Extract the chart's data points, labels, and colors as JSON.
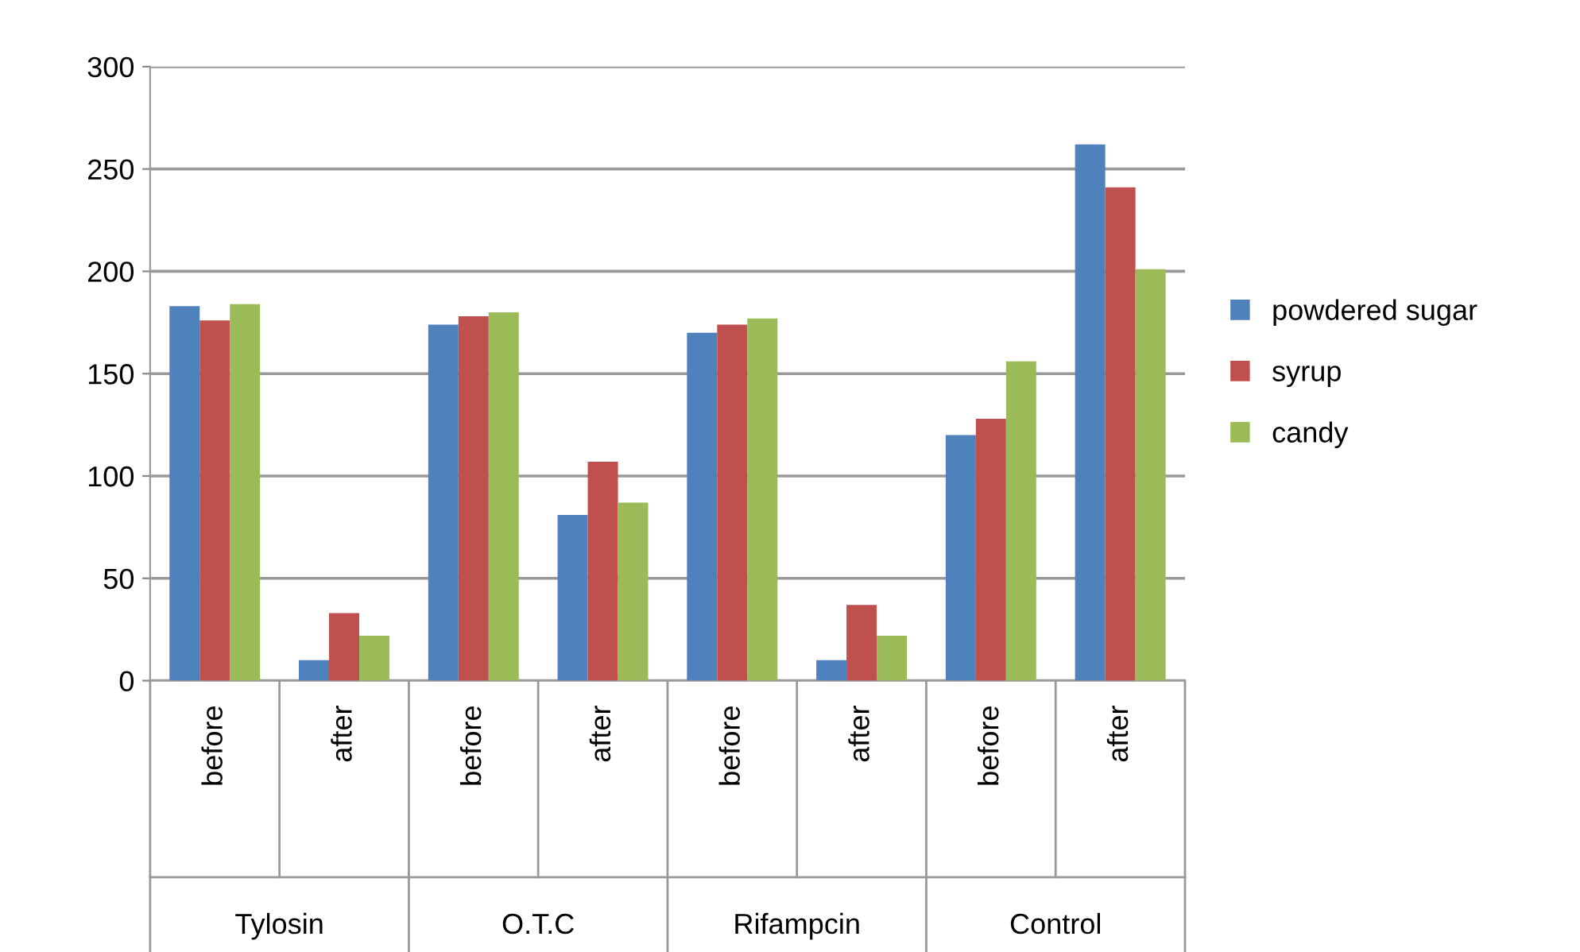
{
  "chart_data": {
    "type": "bar",
    "categories": [
      "before",
      "after",
      "before",
      "after",
      "before",
      "after",
      "before",
      "after"
    ],
    "annotations": [
      "Tylosin",
      "O.T.C",
      "Rifampcin",
      "Control"
    ],
    "series": [
      {
        "name": "powdered sugar",
        "color": "#4f81bd",
        "values": [
          183,
          10,
          174,
          81,
          170,
          10,
          120,
          262
        ]
      },
      {
        "name": "syrup",
        "color": "#c0504d",
        "values": [
          176,
          33,
          178,
          107,
          174,
          37,
          128,
          241
        ]
      },
      {
        "name": "candy",
        "color": "#9bbb59",
        "values": [
          184,
          22,
          180,
          87,
          177,
          22,
          156,
          201
        ]
      }
    ],
    "ylim": [
      0,
      300
    ],
    "yticks": [
      0,
      50,
      100,
      150,
      200,
      250,
      300
    ],
    "grid": "y",
    "legend": "right"
  }
}
